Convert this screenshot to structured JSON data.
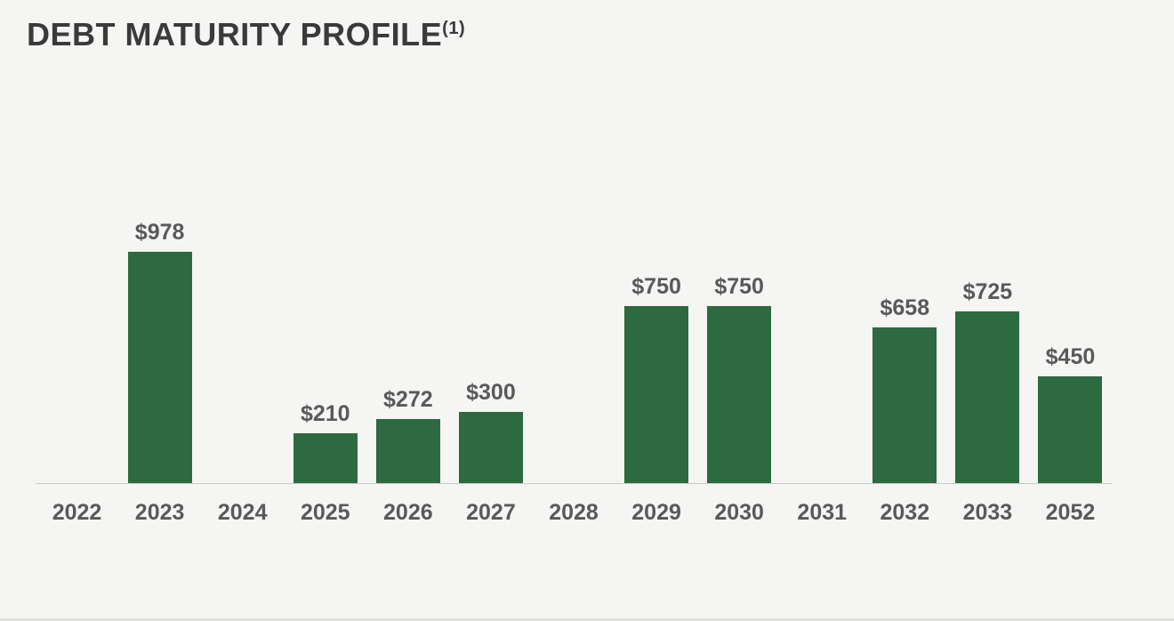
{
  "header": {
    "title": "DEBT MATURITY PROFILE",
    "footnote_marker": "(1)"
  },
  "colors": {
    "background": "#f5f5f3",
    "bar": "#2d6a3f",
    "label": "#595959",
    "axis_line": "#c9c9c9",
    "title": "#3a3a3a"
  },
  "chart_data": {
    "type": "bar",
    "title": "DEBT MATURITY PROFILE(1)",
    "categories": [
      "2022",
      "2023",
      "2024",
      "2025",
      "2026",
      "2027",
      "2028",
      "2029",
      "2030",
      "2031",
      "2032",
      "2033",
      "2052"
    ],
    "values": [
      0,
      978,
      0,
      210,
      272,
      300,
      0,
      750,
      750,
      0,
      658,
      725,
      450
    ],
    "bar_labels": [
      "",
      "$978",
      "",
      "$210",
      "$272",
      "$300",
      "",
      "$750",
      "$750",
      "",
      "$658",
      "$725",
      "$450"
    ],
    "xlabel": "",
    "ylabel": "",
    "ylim": [
      0,
      978
    ],
    "grid": false,
    "legend": "none",
    "bar_color": "#2d6a3f",
    "label_color": "#595959",
    "axis_line_color": "#c9c9c9"
  }
}
